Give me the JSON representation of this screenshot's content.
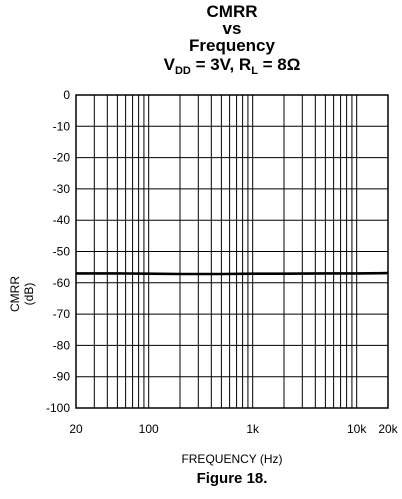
{
  "title": {
    "line1": "CMRR",
    "line2": "vs",
    "line3": "Frequency",
    "cond_v": "V",
    "cond_v_sub": "DD",
    "cond_v_rest": " = 3V, R",
    "cond_r_sub": "L",
    "cond_r_rest": " = 8Ω"
  },
  "caption": "Figure 18.",
  "chart_data": {
    "type": "line",
    "xlabel": "FREQUENCY (Hz)",
    "ylabel": "CMRR (dB)",
    "xscale": "log",
    "xlim": [
      20,
      20000
    ],
    "ylim": [
      -100,
      0
    ],
    "grid": true,
    "xticks": [
      20,
      100,
      1000,
      10000,
      20000
    ],
    "xticklabels": [
      "20",
      "100",
      "1k",
      "10k",
      "20k"
    ],
    "yticks": [
      0,
      -10,
      -20,
      -30,
      -40,
      -50,
      -60,
      -70,
      -80,
      -90,
      -100
    ],
    "yticklabels": [
      "0",
      "-10",
      "-20",
      "-30",
      "-40",
      "-50",
      "-60",
      "-70",
      "-80",
      "-90",
      "-100"
    ],
    "series": [
      {
        "x": [
          20,
          50,
          100,
          200,
          500,
          1000,
          2000,
          5000,
          10000,
          20000
        ],
        "y": [
          -57,
          -57,
          -57.1,
          -57.2,
          -57.2,
          -57.1,
          -57.1,
          -57,
          -57,
          -56.9
        ]
      }
    ]
  }
}
